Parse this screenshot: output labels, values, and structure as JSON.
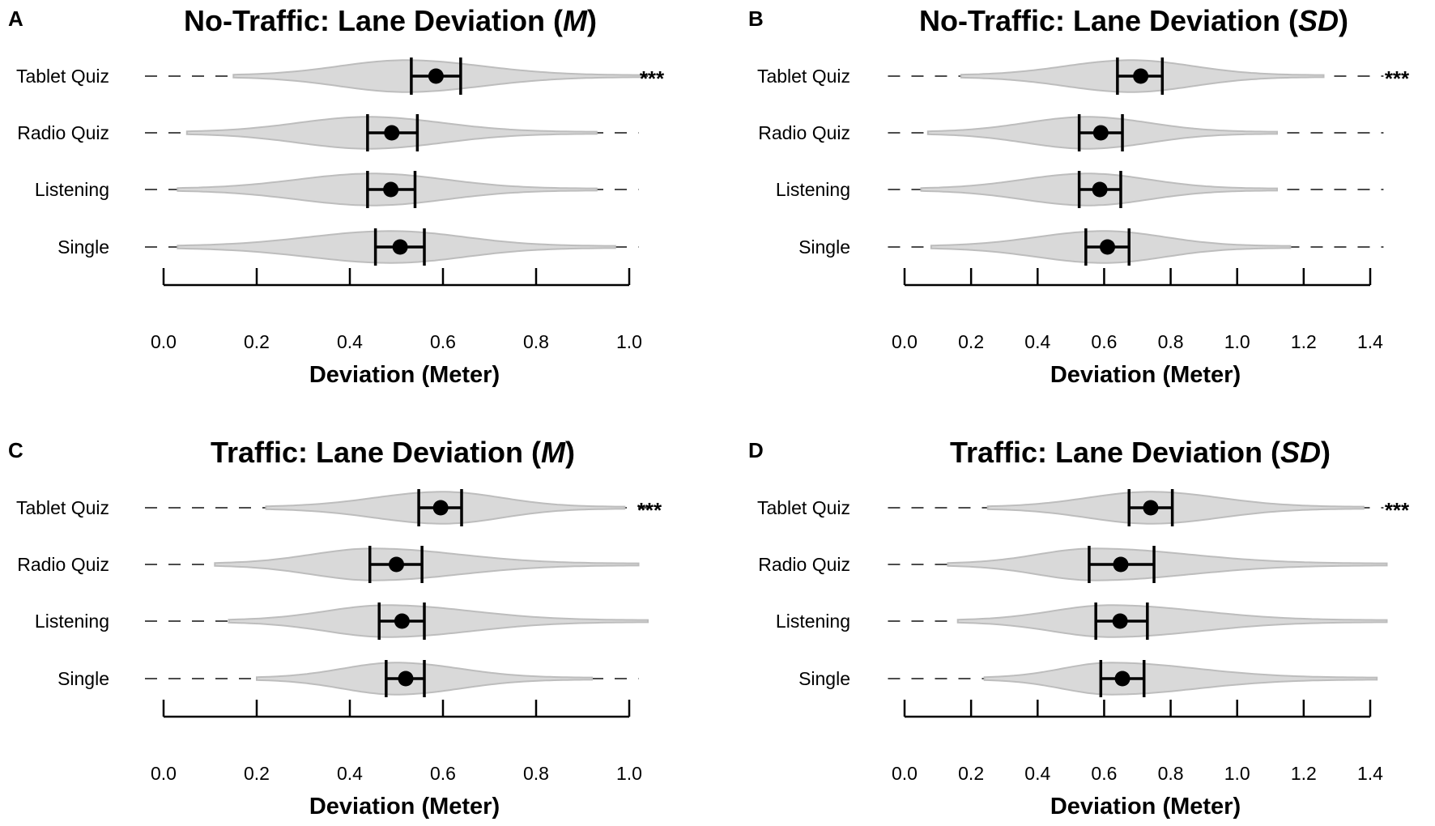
{
  "colors": {
    "violin_fill": "#d9d9d9",
    "violin_stroke": "#bdbdbd",
    "whisker": "#4d4d4d",
    "ink": "#000000"
  },
  "chart_data": [
    {
      "panel": "A",
      "type": "violin",
      "title_main": "No-Traffic: Lane Deviation (",
      "title_stat": "M",
      "title_close": ")",
      "xlabel": "Deviation (Meter)",
      "xlim": [
        0.0,
        1.0
      ],
      "xticks": [
        0.0,
        0.2,
        0.4,
        0.6,
        0.8,
        1.0
      ],
      "xtick_labels": [
        "0.0",
        "0.2",
        "0.4",
        "0.6",
        "0.8",
        "1.0"
      ],
      "categories": [
        "Tablet Quiz",
        "Radio Quiz",
        "Listening",
        "Single"
      ],
      "series": [
        {
          "name": "Tablet Quiz",
          "mean": 0.585,
          "ci": [
            0.532,
            0.638
          ],
          "whisker": [
            -0.04,
            1.04
          ],
          "violin": [
            0.15,
            1.03
          ],
          "peak": 0.52,
          "halfwidth": 0.84,
          "sig": "***"
        },
        {
          "name": "Radio Quiz",
          "mean": 0.49,
          "ci": [
            0.438,
            0.545
          ],
          "whisker": [
            -0.04,
            1.02
          ],
          "violin": [
            0.05,
            0.93
          ],
          "peak": 0.44,
          "halfwidth": 0.84,
          "sig": ""
        },
        {
          "name": "Listening",
          "mean": 0.488,
          "ci": [
            0.438,
            0.54
          ],
          "whisker": [
            -0.04,
            1.02
          ],
          "violin": [
            0.03,
            0.93
          ],
          "peak": 0.45,
          "halfwidth": 0.84,
          "sig": ""
        },
        {
          "name": "Single",
          "mean": 0.508,
          "ci": [
            0.455,
            0.56
          ],
          "whisker": [
            -0.04,
            1.02
          ],
          "violin": [
            0.03,
            0.97
          ],
          "peak": 0.49,
          "halfwidth": 0.84,
          "sig": ""
        }
      ]
    },
    {
      "panel": "B",
      "type": "violin",
      "title_main": "No-Traffic: Lane Deviation (",
      "title_stat": "SD",
      "title_close": ")",
      "xlabel": "Deviation (Meter)",
      "xlim": [
        0.0,
        1.4
      ],
      "xticks": [
        0.0,
        0.2,
        0.4,
        0.6,
        0.8,
        1.0,
        1.2,
        1.4
      ],
      "xtick_labels": [
        "0.0",
        "0.2",
        "0.4",
        "0.6",
        "0.8",
        "1.0",
        "1.2",
        "1.4"
      ],
      "categories": [
        "Tablet Quiz",
        "Radio Quiz",
        "Listening",
        "Single"
      ],
      "series": [
        {
          "name": "Tablet Quiz",
          "mean": 0.71,
          "ci": [
            0.64,
            0.775
          ],
          "whisker": [
            -0.05,
            1.44
          ],
          "violin": [
            0.17,
            1.26
          ],
          "peak": 0.68,
          "halfwidth": 0.84,
          "sig": "***"
        },
        {
          "name": "Radio Quiz",
          "mean": 0.59,
          "ci": [
            0.525,
            0.655
          ],
          "whisker": [
            -0.05,
            1.44
          ],
          "violin": [
            0.07,
            1.12
          ],
          "peak": 0.55,
          "halfwidth": 0.84,
          "sig": ""
        },
        {
          "name": "Listening",
          "mean": 0.587,
          "ci": [
            0.525,
            0.65
          ],
          "whisker": [
            -0.05,
            1.44
          ],
          "violin": [
            0.05,
            1.12
          ],
          "peak": 0.55,
          "halfwidth": 0.84,
          "sig": ""
        },
        {
          "name": "Single",
          "mean": 0.61,
          "ci": [
            0.545,
            0.675
          ],
          "whisker": [
            -0.05,
            1.44
          ],
          "violin": [
            0.08,
            1.16
          ],
          "peak": 0.6,
          "halfwidth": 0.84,
          "sig": ""
        }
      ]
    },
    {
      "panel": "C",
      "type": "violin",
      "title_main": "Traffic: Lane Deviation (",
      "title_stat": "M",
      "title_close": ")",
      "xlabel": "Deviation (Meter)",
      "xlim": [
        0.0,
        1.0
      ],
      "xticks": [
        0.0,
        0.2,
        0.4,
        0.6,
        0.8,
        1.0
      ],
      "xtick_labels": [
        "0.0",
        "0.2",
        "0.4",
        "0.6",
        "0.8",
        "1.0"
      ],
      "categories": [
        "Tablet Quiz",
        "Radio Quiz",
        "Listening",
        "Single"
      ],
      "series": [
        {
          "name": "Tablet Quiz",
          "mean": 0.595,
          "ci": [
            0.548,
            0.64
          ],
          "whisker": [
            -0.04,
            1.04
          ],
          "violin": [
            0.22,
            0.99
          ],
          "peak": 0.6,
          "halfwidth": 0.84,
          "sig": "***"
        },
        {
          "name": "Radio Quiz",
          "mean": 0.5,
          "ci": [
            0.443,
            0.555
          ],
          "whisker": [
            -0.04,
            1.02
          ],
          "violin": [
            0.11,
            1.02
          ],
          "peak": 0.45,
          "halfwidth": 0.84,
          "sig": ""
        },
        {
          "name": "Listening",
          "mean": 0.512,
          "ci": [
            0.463,
            0.56
          ],
          "whisker": [
            -0.04,
            1.02
          ],
          "violin": [
            0.14,
            1.04
          ],
          "peak": 0.48,
          "halfwidth": 0.84,
          "sig": ""
        },
        {
          "name": "Single",
          "mean": 0.52,
          "ci": [
            0.478,
            0.56
          ],
          "whisker": [
            -0.04,
            1.02
          ],
          "violin": [
            0.2,
            0.92
          ],
          "peak": 0.5,
          "halfwidth": 0.84,
          "sig": ""
        }
      ]
    },
    {
      "panel": "D",
      "type": "violin",
      "title_main": "Traffic: Lane Deviation (",
      "title_stat": "SD",
      "title_close": ")",
      "xlabel": "Deviation (Meter)",
      "xlim": [
        0.0,
        1.4
      ],
      "xticks": [
        0.0,
        0.2,
        0.4,
        0.6,
        0.8,
        1.0,
        1.2,
        1.4
      ],
      "xtick_labels": [
        "0.0",
        "0.2",
        "0.4",
        "0.6",
        "0.8",
        "1.0",
        "1.2",
        "1.4"
      ],
      "categories": [
        "Tablet Quiz",
        "Radio Quiz",
        "Listening",
        "Single"
      ],
      "series": [
        {
          "name": "Tablet Quiz",
          "mean": 0.74,
          "ci": [
            0.675,
            0.805
          ],
          "whisker": [
            -0.05,
            1.44
          ],
          "violin": [
            0.25,
            1.38
          ],
          "peak": 0.74,
          "halfwidth": 0.84,
          "sig": "***"
        },
        {
          "name": "Radio Quiz",
          "mean": 0.65,
          "ci": [
            0.555,
            0.75
          ],
          "whisker": [
            -0.05,
            1.45
          ],
          "violin": [
            0.13,
            1.45
          ],
          "peak": 0.57,
          "halfwidth": 0.84,
          "sig": ""
        },
        {
          "name": "Listening",
          "mean": 0.648,
          "ci": [
            0.575,
            0.73
          ],
          "whisker": [
            -0.05,
            1.45
          ],
          "violin": [
            0.16,
            1.45
          ],
          "peak": 0.62,
          "halfwidth": 0.84,
          "sig": ""
        },
        {
          "name": "Single",
          "mean": 0.655,
          "ci": [
            0.59,
            0.72
          ],
          "whisker": [
            -0.05,
            1.42
          ],
          "violin": [
            0.24,
            1.42
          ],
          "peak": 0.62,
          "halfwidth": 0.84,
          "sig": ""
        }
      ]
    }
  ]
}
